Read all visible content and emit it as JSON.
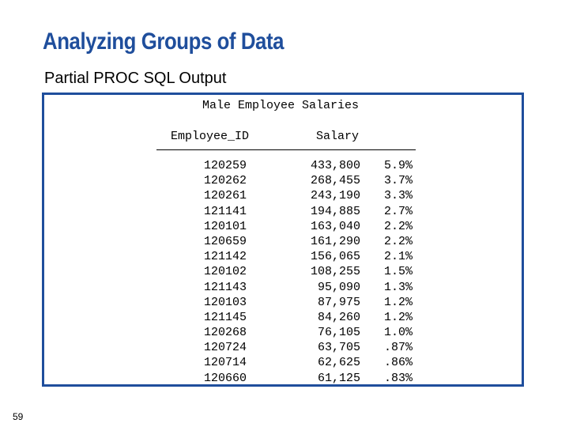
{
  "slide": {
    "title": "Analyzing Groups of Data",
    "subtitle": "Partial PROC SQL Output",
    "page_number": "59"
  },
  "report": {
    "title": "Male Employee Salaries",
    "columns": [
      "Employee_ID",
      "Salary"
    ],
    "rows": [
      {
        "id": "120259",
        "salary": "433,800",
        "pct": "5.9%"
      },
      {
        "id": "120262",
        "salary": "268,455",
        "pct": "3.7%"
      },
      {
        "id": "120261",
        "salary": "243,190",
        "pct": "3.3%"
      },
      {
        "id": "121141",
        "salary": "194,885",
        "pct": "2.7%"
      },
      {
        "id": "120101",
        "salary": "163,040",
        "pct": "2.2%"
      },
      {
        "id": "120659",
        "salary": "161,290",
        "pct": "2.2%"
      },
      {
        "id": "121142",
        "salary": "156,065",
        "pct": "2.1%"
      },
      {
        "id": "120102",
        "salary": "108,255",
        "pct": "1.5%"
      },
      {
        "id": "121143",
        "salary": "95,090",
        "pct": "1.3%"
      },
      {
        "id": "120103",
        "salary": "87,975",
        "pct": "1.2%"
      },
      {
        "id": "121145",
        "salary": "84,260",
        "pct": "1.2%"
      },
      {
        "id": "120268",
        "salary": "76,105",
        "pct": "1.0%"
      },
      {
        "id": "120724",
        "salary": "63,705",
        "pct": ".87%"
      },
      {
        "id": "120714",
        "salary": "62,625",
        "pct": ".86%"
      },
      {
        "id": "120660",
        "salary": "61,125",
        "pct": ".83%"
      }
    ]
  }
}
